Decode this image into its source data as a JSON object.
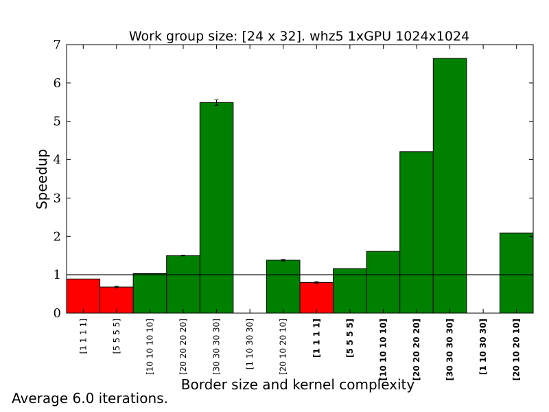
{
  "footnote": "Average 6.0 iterations.",
  "chart_data": {
    "type": "bar",
    "title": "Work group size: [24 x 32]. whz5 1xGPU 1024x1024",
    "xlabel": "Border size and kernel complexity",
    "ylabel": "Speedup",
    "ylim": [
      0,
      7
    ],
    "yticks": [
      0,
      1,
      2,
      3,
      4,
      5,
      6,
      7
    ],
    "reference_line": 1,
    "grid": false,
    "colors": {
      "slower": "#ff0000",
      "faster": "#008000"
    },
    "categories": [
      "[1 1 1 1]",
      "[5 5 5 5]",
      "[10 10 10 10]",
      "[20 20 20 20]",
      "[30 30 30 30]",
      "[1 10 30 30]",
      "[20 10 20 10]",
      "[1 1 1 1]",
      "[5 5 5 5]",
      "[10 10 10 10]",
      "[20 20 20 20]",
      "[30 30 30 30]",
      "[1 10 30 30]",
      "[20 10 20 10]"
    ],
    "bold_labels": [
      false,
      false,
      false,
      false,
      false,
      false,
      false,
      true,
      true,
      true,
      true,
      true,
      true,
      true
    ],
    "values": [
      0.89,
      0.68,
      1.03,
      1.5,
      5.49,
      0.0,
      1.38,
      0.8,
      1.16,
      1.61,
      4.21,
      6.64,
      0.0,
      2.09
    ],
    "errors": [
      0.0,
      0.02,
      0.0,
      0.01,
      0.07,
      0.0,
      0.02,
      0.02,
      0.0,
      0.0,
      0.0,
      0.0,
      0.0,
      0.0
    ]
  }
}
